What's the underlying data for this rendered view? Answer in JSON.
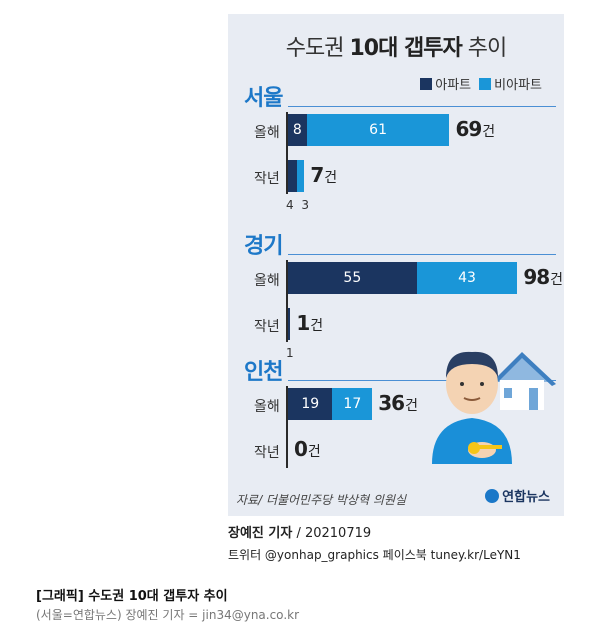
{
  "chart_data": {
    "type": "bar",
    "title_prefix": "수도권",
    "title_bold": "10대 갭투자",
    "title_suffix": "추이",
    "legend": [
      "아파트",
      "비아파트"
    ],
    "colors": {
      "apt": "#1b3560",
      "nonapt": "#1a96d8"
    },
    "unit": "건",
    "regions": [
      {
        "name": "서울",
        "rows": [
          {
            "label": "올해",
            "apt": 8,
            "nonapt": 61,
            "total": 69
          },
          {
            "label": "작년",
            "apt": 4,
            "nonapt": 3,
            "total": 7
          }
        ]
      },
      {
        "name": "경기",
        "rows": [
          {
            "label": "올해",
            "apt": 55,
            "nonapt": 43,
            "total": 98
          },
          {
            "label": "작년",
            "apt": 1,
            "nonapt": 0,
            "total": 1
          }
        ]
      },
      {
        "name": "인천",
        "rows": [
          {
            "label": "올해",
            "apt": 19,
            "nonapt": 17,
            "total": 36
          },
          {
            "label": "작년",
            "apt": 0,
            "nonapt": 0,
            "total": 0
          }
        ]
      }
    ]
  },
  "source": "자료/ 더불어민주당 박상혁 의원실",
  "logo": "연합뉴스",
  "credit": {
    "reporter": "장예진 기자",
    "date": " / 20210719",
    "social": "트위터 @yonhap_graphics  페이스북 tuney.kr/LeYN1"
  },
  "caption": {
    "title": "[그래픽] 수도권 10대 갭투자 추이",
    "byline": "(서울=연합뉴스) 장예진 기자 = jin34@yna.co.kr"
  }
}
